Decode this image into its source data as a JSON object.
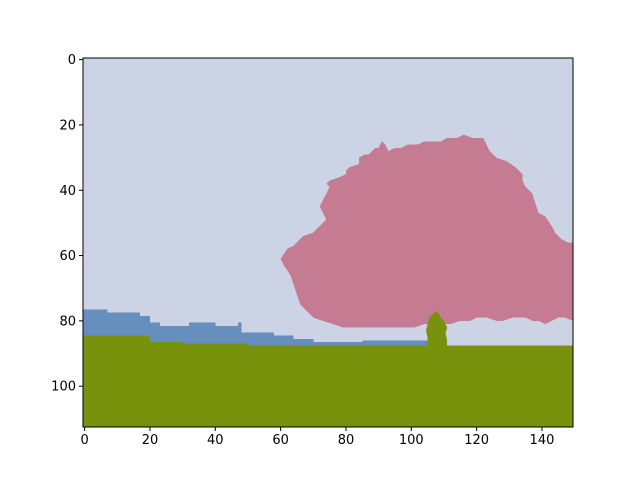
{
  "chart_data": {
    "type": "heatmap",
    "title": "",
    "xlabel": "",
    "ylabel": "",
    "xlim": [
      -0.5,
      149.5
    ],
    "ylim": [
      112.5,
      -0.5
    ],
    "x_ticks": [
      "0",
      "20",
      "40",
      "60",
      "80",
      "100",
      "120",
      "140"
    ],
    "y_ticks": [
      "0",
      "20",
      "40",
      "60",
      "80",
      "100"
    ],
    "grid": false,
    "legend": "none",
    "image_size": {
      "width": 150,
      "height": 113
    },
    "colors": {
      "sky": "#cbd3e5",
      "tree": "#c57b91",
      "hills": "#678fbd",
      "ground": "#79920c"
    },
    "regions": [
      {
        "label": "sky",
        "color_key": "sky",
        "polygon": [
          [
            -0.5,
            -0.5
          ],
          [
            149.5,
            -0.5
          ],
          [
            149.5,
            112.5
          ],
          [
            -0.5,
            112.5
          ]
        ]
      },
      {
        "label": "hills",
        "color_key": "hills",
        "polygon": [
          [
            -0.5,
            76.5
          ],
          [
            7,
            76.5
          ],
          [
            7,
            77.5
          ],
          [
            17,
            77.5
          ],
          [
            17,
            78.5
          ],
          [
            20,
            78.5
          ],
          [
            20,
            80.5
          ],
          [
            23,
            80.5
          ],
          [
            23,
            81.5
          ],
          [
            32,
            81.5
          ],
          [
            32,
            80.5
          ],
          [
            40,
            80.5
          ],
          [
            40,
            81.5
          ],
          [
            47,
            81.5
          ],
          [
            47,
            80.5
          ],
          [
            48,
            80.5
          ],
          [
            48,
            83.5
          ],
          [
            58,
            83.5
          ],
          [
            58,
            84.5
          ],
          [
            64,
            84.5
          ],
          [
            64,
            85.5
          ],
          [
            70,
            85.5
          ],
          [
            70,
            86.5
          ],
          [
            85,
            86.5
          ],
          [
            85,
            86
          ],
          [
            110,
            86
          ],
          [
            110,
            87.5
          ],
          [
            -0.5,
            87.5
          ]
        ]
      },
      {
        "label": "tree-canopy",
        "color_key": "tree",
        "polygon": [
          [
            60,
            61
          ],
          [
            62,
            58
          ],
          [
            64,
            57
          ],
          [
            66,
            55
          ],
          [
            67,
            54
          ],
          [
            70,
            53
          ],
          [
            72,
            51
          ],
          [
            74,
            49
          ],
          [
            73,
            47
          ],
          [
            72,
            45
          ],
          [
            73,
            43
          ],
          [
            74,
            41
          ],
          [
            75,
            39
          ],
          [
            74,
            38
          ],
          [
            75,
            37
          ],
          [
            78,
            36
          ],
          [
            80,
            35
          ],
          [
            80,
            34
          ],
          [
            81,
            33
          ],
          [
            84,
            32
          ],
          [
            84,
            30
          ],
          [
            86,
            29
          ],
          [
            87,
            29
          ],
          [
            88,
            28
          ],
          [
            89,
            27
          ],
          [
            90,
            27
          ],
          [
            91,
            25
          ],
          [
            92,
            26
          ],
          [
            93,
            28
          ],
          [
            95,
            27
          ],
          [
            97,
            27
          ],
          [
            99,
            26
          ],
          [
            102,
            26
          ],
          [
            104,
            25
          ],
          [
            107,
            25
          ],
          [
            109,
            25
          ],
          [
            111,
            24
          ],
          [
            114,
            24
          ],
          [
            116,
            23
          ],
          [
            119,
            24
          ],
          [
            122,
            24
          ],
          [
            123,
            26
          ],
          [
            124,
            28
          ],
          [
            126,
            30
          ],
          [
            129,
            31
          ],
          [
            132,
            33
          ],
          [
            134,
            35
          ],
          [
            134,
            37
          ],
          [
            135,
            39
          ],
          [
            137,
            41
          ],
          [
            138,
            44
          ],
          [
            139,
            47
          ],
          [
            141,
            48
          ],
          [
            143,
            51
          ],
          [
            144,
            53
          ],
          [
            146,
            55
          ],
          [
            148,
            56
          ],
          [
            149.5,
            56
          ],
          [
            149.5,
            80
          ],
          [
            147,
            79
          ],
          [
            145,
            79
          ],
          [
            143,
            80
          ],
          [
            141,
            81
          ],
          [
            139,
            80
          ],
          [
            137,
            80
          ],
          [
            135,
            79
          ],
          [
            131,
            79
          ],
          [
            128,
            80
          ],
          [
            126,
            80
          ],
          [
            123,
            79
          ],
          [
            120,
            79
          ],
          [
            118,
            80
          ],
          [
            115,
            80
          ],
          [
            112,
            81
          ],
          [
            109,
            81
          ],
          [
            106,
            81
          ],
          [
            104,
            81
          ],
          [
            101,
            82
          ],
          [
            98,
            82
          ],
          [
            95,
            82
          ],
          [
            92,
            82
          ],
          [
            89,
            82
          ],
          [
            86,
            82
          ],
          [
            83,
            82
          ],
          [
            79,
            82
          ],
          [
            76,
            81
          ],
          [
            73,
            80
          ],
          [
            70,
            79
          ],
          [
            68,
            77
          ],
          [
            66,
            75
          ],
          [
            65,
            72
          ],
          [
            64,
            69
          ],
          [
            63,
            66
          ],
          [
            61,
            63
          ]
        ]
      },
      {
        "label": "tree-trunk",
        "color_key": "ground",
        "polygon": [
          [
            105.5,
            79
          ],
          [
            106.5,
            78
          ],
          [
            108,
            77
          ],
          [
            109,
            79
          ],
          [
            110,
            80
          ],
          [
            111,
            82
          ],
          [
            110.5,
            84
          ],
          [
            111,
            86
          ],
          [
            111,
            87.5
          ],
          [
            105,
            87.5
          ],
          [
            105,
            85
          ],
          [
            104.5,
            83
          ],
          [
            105,
            81
          ]
        ]
      },
      {
        "label": "ground",
        "color_key": "ground",
        "polygon": [
          [
            -0.5,
            84.5
          ],
          [
            20,
            84.5
          ],
          [
            20,
            86.5
          ],
          [
            30,
            86.5
          ],
          [
            30,
            87
          ],
          [
            50,
            87
          ],
          [
            50,
            87.5
          ],
          [
            149.5,
            87.5
          ],
          [
            149.5,
            112.5
          ],
          [
            -0.5,
            112.5
          ]
        ]
      }
    ]
  }
}
